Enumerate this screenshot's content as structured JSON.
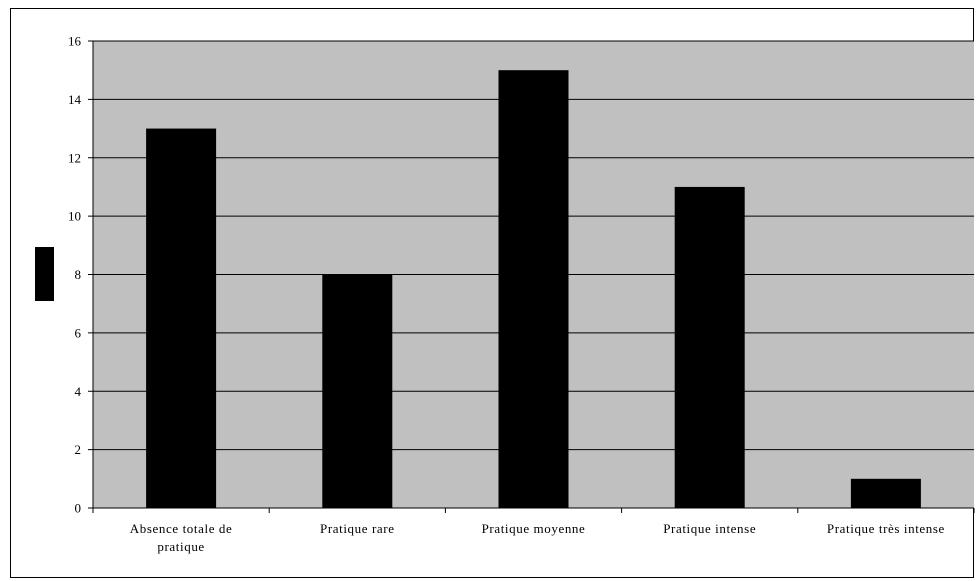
{
  "chart_data": {
    "type": "bar",
    "categories": [
      [
        "Absence totale de",
        "pratique"
      ],
      [
        "Pratique rare"
      ],
      [
        "Pratique moyenne"
      ],
      [
        "Pratique intense"
      ],
      [
        "Pratique très intense"
      ]
    ],
    "values": [
      13,
      8,
      15,
      11,
      1
    ],
    "title": "",
    "xlabel": "",
    "ylabel": "",
    "ylim": [
      0,
      16
    ],
    "yticks": [
      0,
      2,
      4,
      6,
      8,
      10,
      12,
      14,
      16
    ],
    "grid": true,
    "legend": "none",
    "colors": {
      "bar": "#000000",
      "plot_background": "#c0c0c0",
      "gridline": "#000000",
      "ylabel_marker": "#000000"
    }
  }
}
